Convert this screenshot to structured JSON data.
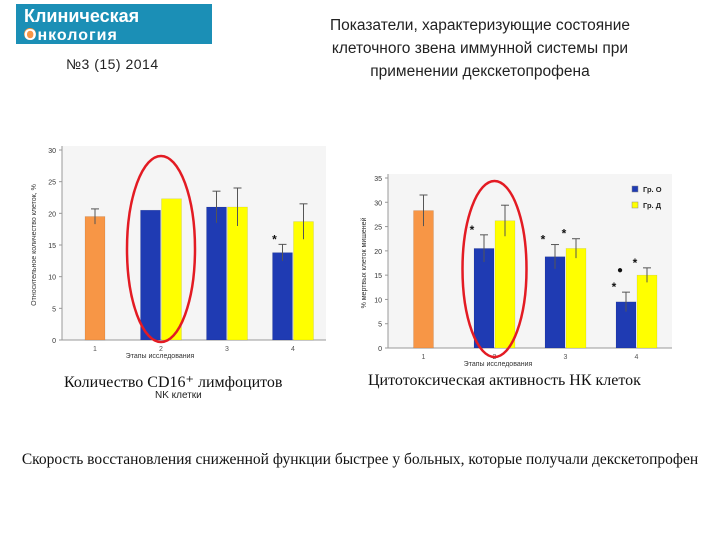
{
  "header": {
    "logo_line1": "Клиническая",
    "logo_line2": "Онкология",
    "issue": "№3 (15) 2014",
    "title_lines": [
      "Показатели, характеризующие состояние",
      "клеточного звена иммунной системы при",
      "применении декскетопрофена"
    ]
  },
  "colors": {
    "orange": "#F79646",
    "blue": "#1F3BB3",
    "yellow": "#FFFF00",
    "highlight": "#E31B23",
    "logo_bg": "#1B8FB6"
  },
  "chart_data": [
    {
      "type": "bar",
      "caption": "Количество CD16⁺ лимфоцитов",
      "subcaption": "NK клетки",
      "xlabel": "Этапы исследования",
      "ylabel": "Относительное количество клеток, %",
      "ylim": [
        0,
        30
      ],
      "yticks": [
        0,
        5,
        10,
        15,
        20,
        25,
        30
      ],
      "categories": [
        "1",
        "2",
        "3",
        "4"
      ],
      "grid": false,
      "highlighted_category": "2",
      "bars": [
        {
          "category": "1",
          "color": "orange",
          "value": 19.5,
          "error": 1.2,
          "marks": ""
        },
        {
          "category": "2",
          "color": "blue",
          "value": 20.5,
          "error": 0,
          "marks": ""
        },
        {
          "category": "2",
          "color": "yellow",
          "value": 22.3,
          "error": 0,
          "marks": ""
        },
        {
          "category": "3",
          "color": "blue",
          "value": 21,
          "error": 2.5,
          "marks": ""
        },
        {
          "category": "3",
          "color": "yellow",
          "value": 21,
          "error": 3,
          "marks": ""
        },
        {
          "category": "4",
          "color": "blue",
          "value": 13.8,
          "error": 1.3,
          "marks": "*"
        },
        {
          "category": "4",
          "color": "yellow",
          "value": 18.7,
          "error": 2.8,
          "marks": ""
        }
      ]
    },
    {
      "type": "bar",
      "caption": "Цитотоксическая активность НК клеток",
      "xlabel": "Этапы исследования",
      "ylabel": "% мертвых клеток мишеней",
      "ylim": [
        0,
        35
      ],
      "yticks": [
        0,
        5,
        10,
        15,
        20,
        25,
        30,
        35
      ],
      "categories": [
        "1",
        "2",
        "3",
        "4"
      ],
      "grid": false,
      "legend_position": "top-right",
      "legend": [
        {
          "label": "Гр. О",
          "color": "blue"
        },
        {
          "label": "Гр. Д",
          "color": "yellow"
        }
      ],
      "highlighted_category": "2",
      "bars": [
        {
          "category": "1",
          "color": "orange",
          "value": 28.3,
          "error": 3.2,
          "marks": ""
        },
        {
          "category": "2",
          "color": "blue",
          "value": 20.5,
          "error": 2.8,
          "marks": "*"
        },
        {
          "category": "2",
          "color": "yellow",
          "value": 26.2,
          "error": 3.2,
          "marks": ""
        },
        {
          "category": "3",
          "color": "blue",
          "value": 18.8,
          "error": 2.5,
          "marks": "*"
        },
        {
          "category": "3",
          "color": "yellow",
          "value": 20.5,
          "error": 2,
          "marks": "*"
        },
        {
          "category": "4",
          "color": "blue",
          "value": 9.5,
          "error": 2,
          "marks": "●\n*"
        },
        {
          "category": "4",
          "color": "yellow",
          "value": 15,
          "error": 1.5,
          "marks": "*"
        }
      ]
    }
  ],
  "conclusion": "Скорость восстановления сниженной функции быстрее у больных, которые получали декскетопрофен"
}
